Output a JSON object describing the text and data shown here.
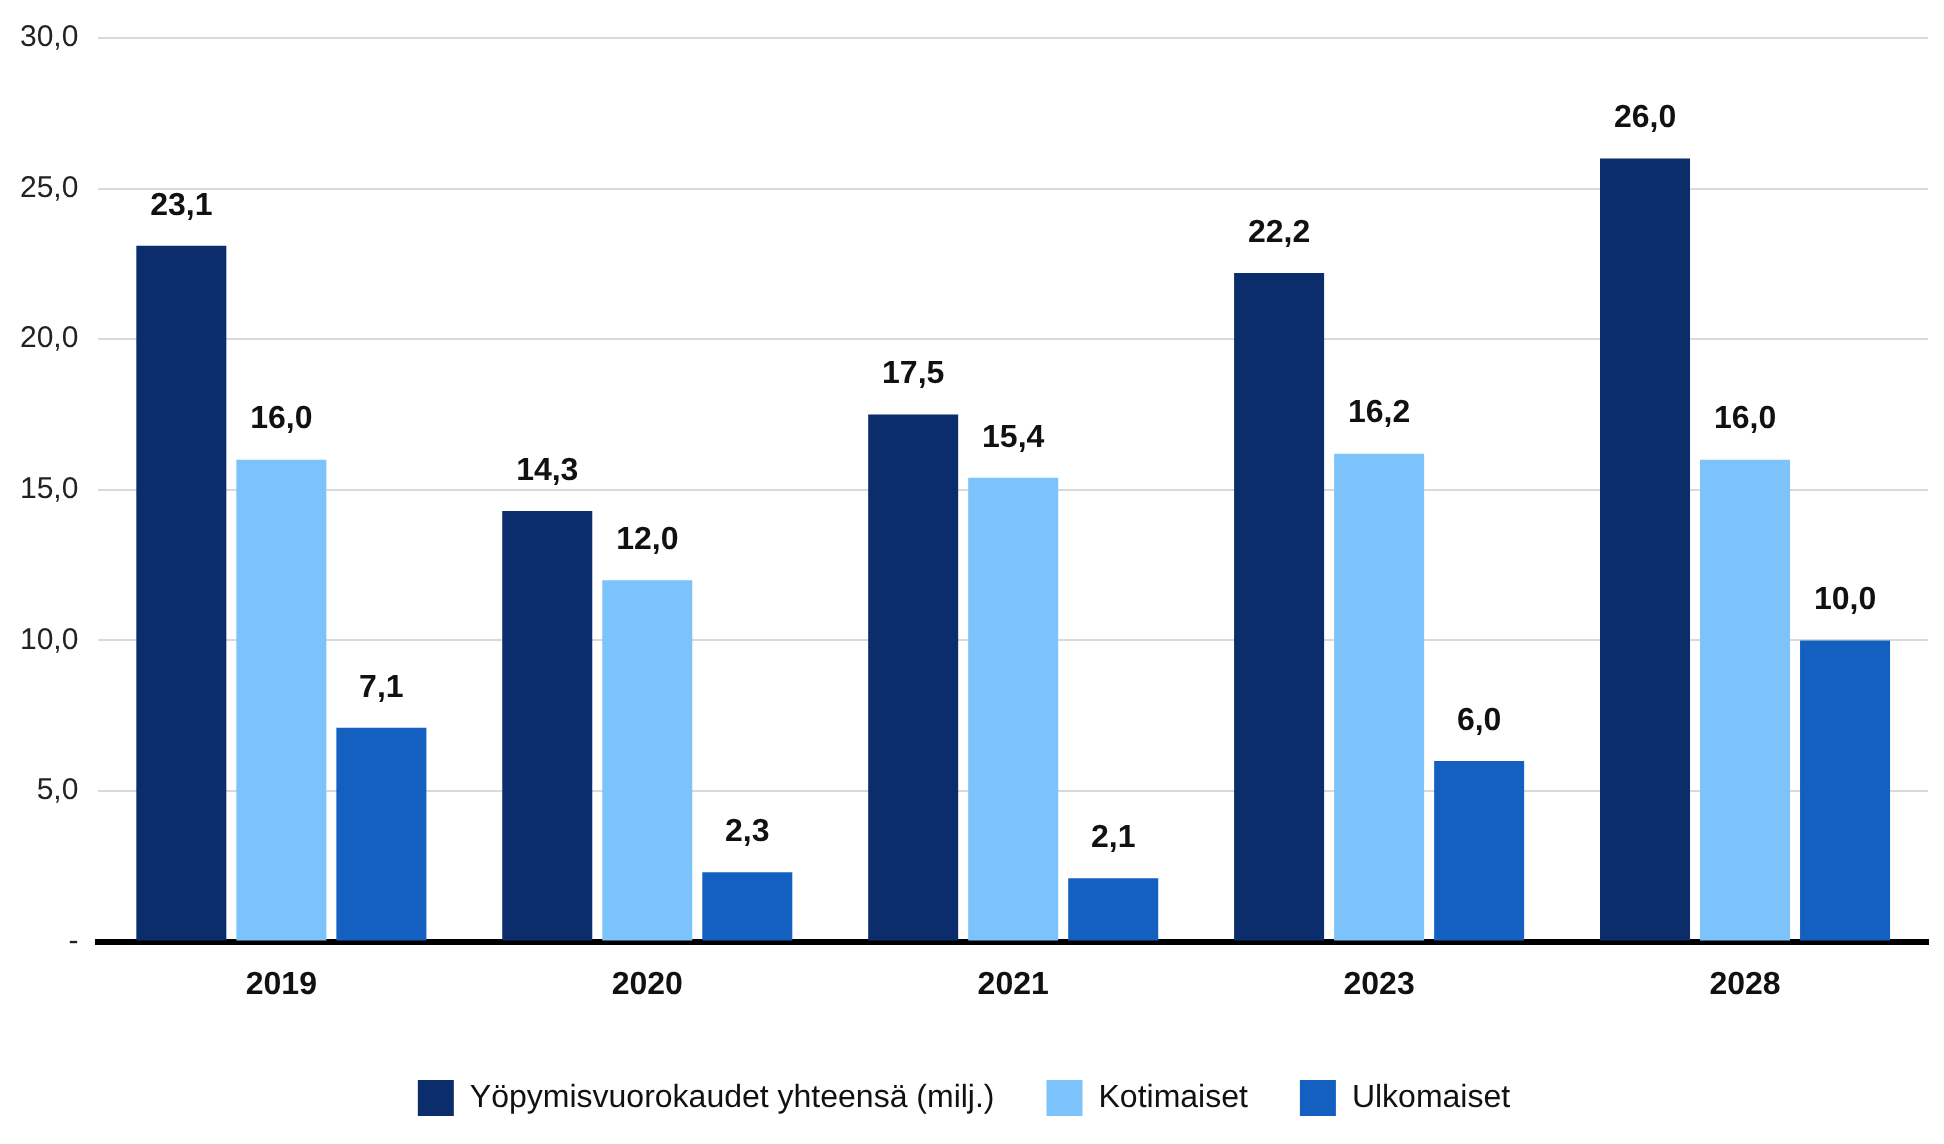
{
  "chart_data": {
    "type": "bar",
    "categories": [
      "2019",
      "2020",
      "2021",
      "2023",
      "2028"
    ],
    "series": [
      {
        "name": "Yöpymisvuorokaudet yhteensä (milj.)",
        "color": "#0b2d6b",
        "values": [
          23.1,
          14.3,
          17.5,
          22.2,
          26.0
        ],
        "value_labels": [
          "23,1",
          "14,3",
          "17,5",
          "22,2",
          "26,0"
        ]
      },
      {
        "name": "Kotimaiset",
        "color": "#7cc3fb",
        "values": [
          16.0,
          12.0,
          15.4,
          16.2,
          16.0
        ],
        "value_labels": [
          "16,0",
          "12,0",
          "15,4",
          "16,2",
          "16,0"
        ]
      },
      {
        "name": "Ulkomaiset",
        "color": "#1460c0",
        "values": [
          7.1,
          2.3,
          2.1,
          6.0,
          10.0
        ],
        "value_labels": [
          "7,1",
          "2,3",
          "2,1",
          "6,0",
          "10,0"
        ]
      }
    ],
    "ylim": [
      0,
      30
    ],
    "yticks": [
      {
        "value": 0,
        "label": "-"
      },
      {
        "value": 5,
        "label": "5,0"
      },
      {
        "value": 10,
        "label": "10,0"
      },
      {
        "value": 15,
        "label": "15,0"
      },
      {
        "value": 20,
        "label": "20,0"
      },
      {
        "value": 25,
        "label": "25,0"
      },
      {
        "value": 30,
        "label": "30,0"
      }
    ],
    "grid": "y",
    "legend": "bottom"
  }
}
